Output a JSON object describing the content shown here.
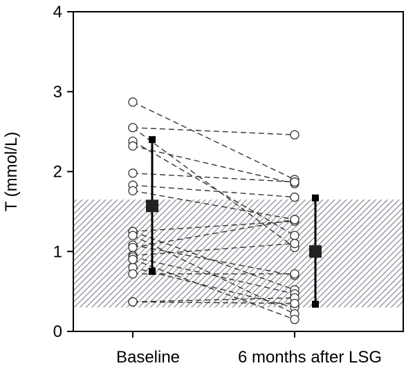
{
  "chart_data": {
    "type": "scatter",
    "subtype": "paired-dot-plot",
    "title": "",
    "xlabel": "",
    "ylabel": "T (mmol/L)",
    "ylim": [
      0,
      4
    ],
    "yticks": [
      0,
      1,
      2,
      3,
      4
    ],
    "categories": [
      "Baseline",
      "6 months after LSG"
    ],
    "grid": false,
    "legend": "none",
    "reference_range": {
      "low": 0.3,
      "high": 1.65,
      "style": "hatched grey"
    },
    "pairs": [
      [
        2.87,
        1.9
      ],
      [
        2.55,
        2.46
      ],
      [
        2.55,
        1.05
      ],
      [
        2.38,
        1.2
      ],
      [
        2.32,
        1.85
      ],
      [
        1.98,
        1.87
      ],
      [
        1.83,
        1.68
      ],
      [
        1.76,
        1.4
      ],
      [
        1.25,
        1.38
      ],
      [
        1.25,
        0.52
      ],
      [
        1.08,
        0.7
      ],
      [
        1.05,
        1.4
      ],
      [
        0.95,
        1.1
      ],
      [
        0.93,
        0.47
      ],
      [
        0.8,
        0.3
      ],
      [
        0.72,
        0.72
      ],
      [
        0.37,
        0.42
      ],
      [
        0.37,
        0.35
      ],
      [
        1.2,
        0.22
      ],
      [
        0.9,
        0.15
      ]
    ],
    "summary": [
      {
        "category": "Baseline",
        "mean": 1.57,
        "upper": 2.4,
        "lower": 0.75
      },
      {
        "category": "6 months after LSG",
        "mean": 1.0,
        "upper": 1.67,
        "lower": 0.34
      }
    ]
  }
}
